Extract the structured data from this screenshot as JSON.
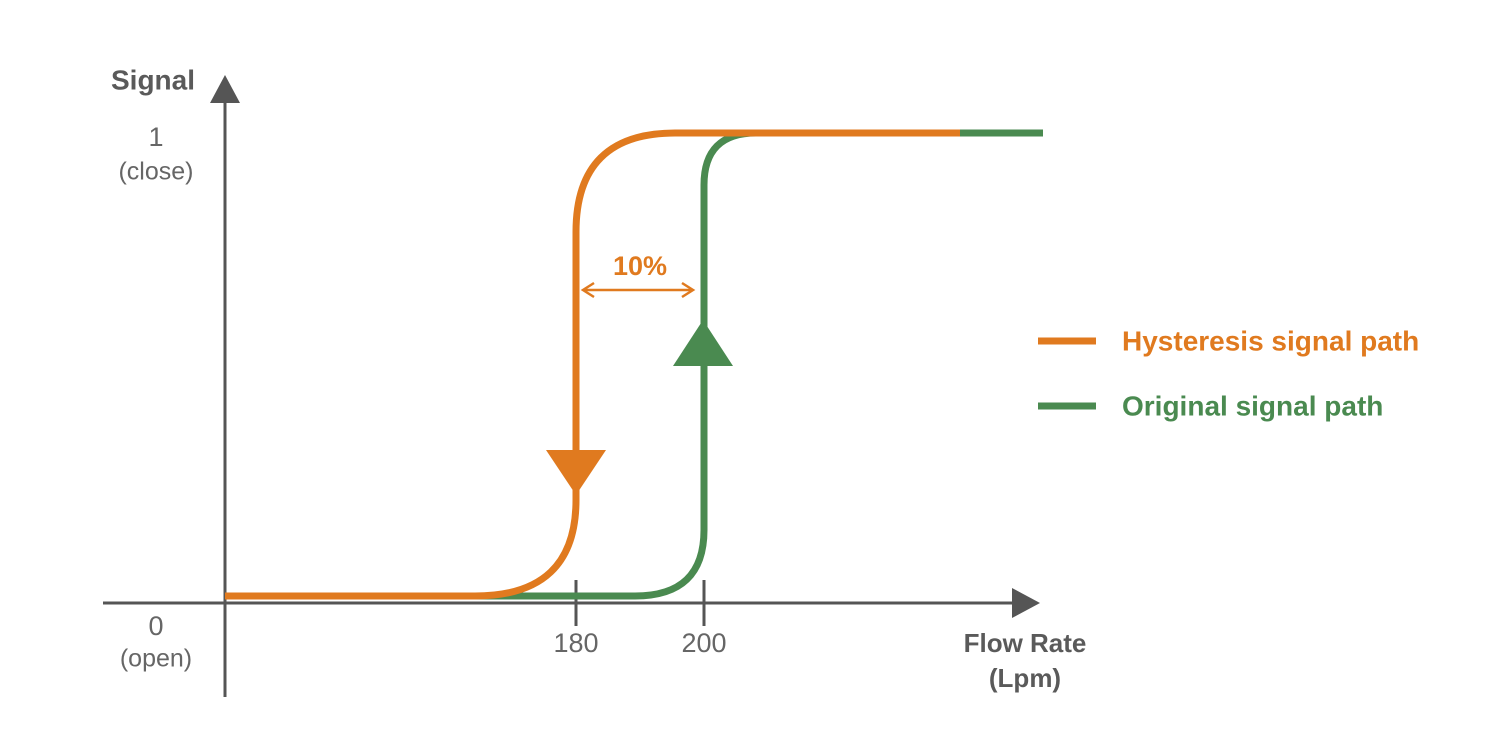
{
  "y_axis": {
    "title": "Signal",
    "ticks": [
      {
        "value": "0",
        "state": "(open)"
      },
      {
        "value": "1",
        "state": "(close)"
      }
    ]
  },
  "x_axis": {
    "title": "Flow Rate",
    "unit": "(Lpm)",
    "ticks": [
      "180",
      "200"
    ]
  },
  "gap_label": "10%",
  "legend": [
    "Hysteresis signal path",
    "Original signal path"
  ]
}
